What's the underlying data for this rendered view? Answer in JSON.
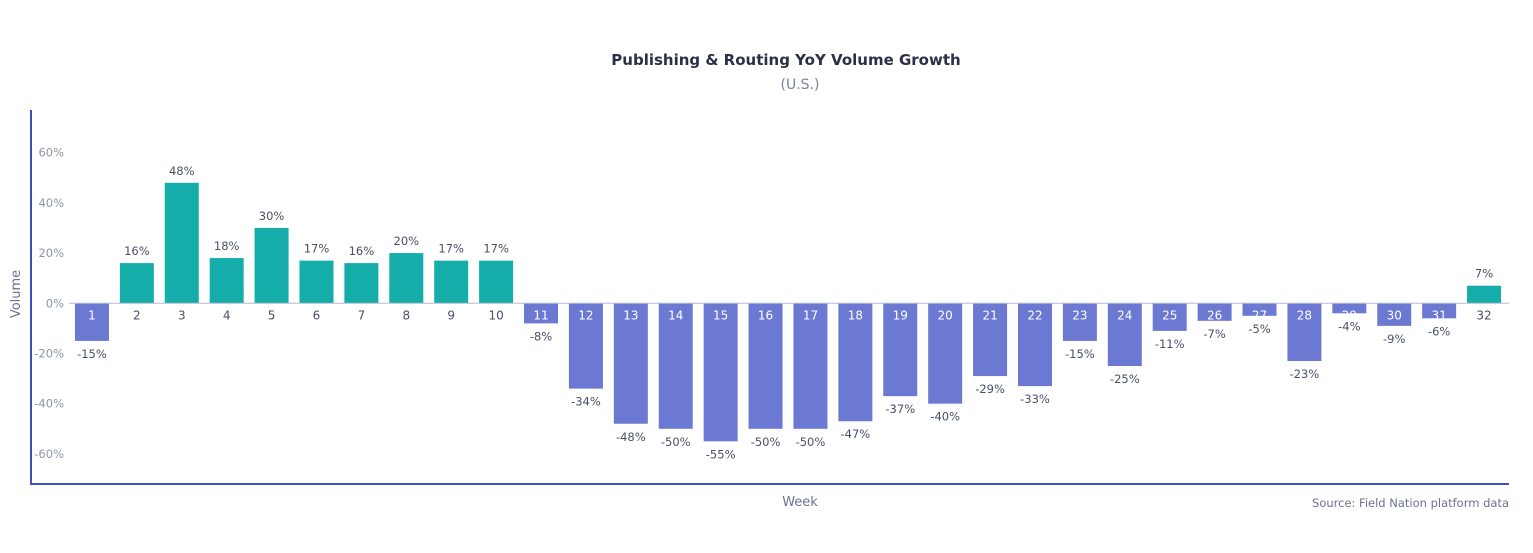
{
  "chart_data": {
    "type": "bar",
    "title": "Publishing & Routing YoY Volume Growth",
    "subtitle": "(U.S.)",
    "xlabel": "Week",
    "ylabel": "Volume",
    "source": "Source: Field Nation platform data",
    "categories": [
      "1",
      "2",
      "3",
      "4",
      "5",
      "6",
      "7",
      "8",
      "9",
      "10",
      "11",
      "12",
      "13",
      "14",
      "15",
      "16",
      "17",
      "18",
      "19",
      "20",
      "21",
      "22",
      "23",
      "24",
      "25",
      "26",
      "27",
      "28",
      "29",
      "30",
      "31",
      "32"
    ],
    "values": [
      -15,
      16,
      48,
      18,
      30,
      17,
      16,
      20,
      17,
      17,
      -8,
      -34,
      -48,
      -50,
      -55,
      -50,
      -50,
      -47,
      -37,
      -40,
      -29,
      -33,
      -15,
      -25,
      -11,
      -7,
      -5,
      -23,
      -4,
      -9,
      -6,
      7
    ],
    "data_labels": [
      "-15%",
      "16%",
      "48%",
      "18%",
      "30%",
      "17%",
      "16%",
      "20%",
      "17%",
      "17%",
      "-8%",
      "-34%",
      "-48%",
      "-50%",
      "-55%",
      "-50%",
      "-50%",
      "-47%",
      "-37%",
      "-40%",
      "-29%",
      "-33%",
      "-15%",
      "-25%",
      "-11%",
      "-7%",
      "-5%",
      "-23%",
      "-4%",
      "-9%",
      "-6%",
      "7%"
    ],
    "yticks": [
      60,
      40,
      20,
      0,
      -20,
      -40,
      -60
    ],
    "ytick_labels": [
      "60%",
      "40%",
      "20%",
      "0%",
      "-20%",
      "-40%",
      "-60%"
    ],
    "ylim": [
      -72,
      77
    ],
    "grid": false,
    "legend": "none",
    "colors": {
      "positive": "#14ADAA",
      "negative": "#6C79D3",
      "axis": "#3F4FC4",
      "zero_line": "#B8BCD0"
    }
  }
}
